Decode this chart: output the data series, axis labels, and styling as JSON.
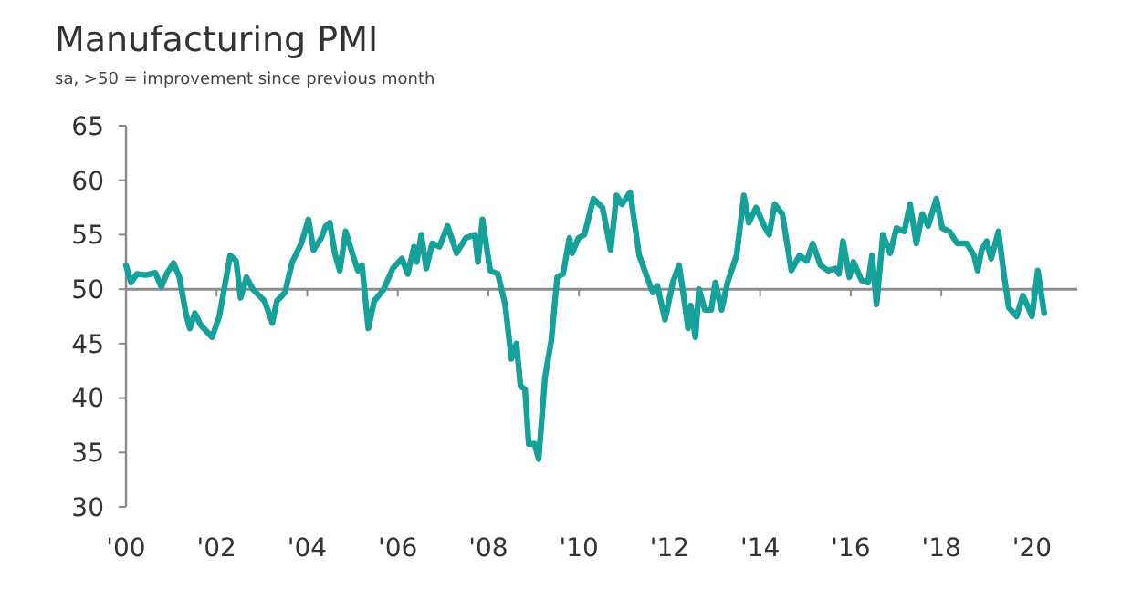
{
  "chart_data": {
    "type": "line",
    "title": "Manufacturing PMI",
    "subtitle": "sa, >50 = improvement since previous month",
    "x": [
      2000.0,
      2000.11,
      2000.24,
      2000.44,
      2000.65,
      2000.78,
      2000.91,
      2001.05,
      2001.18,
      2001.32,
      2001.41,
      2001.52,
      2001.65,
      2001.9,
      2002.06,
      2002.3,
      2002.43,
      2002.53,
      2002.66,
      2002.8,
      2003.06,
      2003.23,
      2003.33,
      2003.51,
      2003.67,
      2003.87,
      2004.03,
      2004.14,
      2004.31,
      2004.41,
      2004.5,
      2004.61,
      2004.72,
      2004.85,
      2005.01,
      2005.12,
      2005.21,
      2005.35,
      2005.48,
      2005.69,
      2005.89,
      2006.09,
      2006.22,
      2006.36,
      2006.42,
      2006.52,
      2006.63,
      2006.76,
      2006.92,
      2007.1,
      2007.3,
      2007.5,
      2007.7,
      2007.77,
      2007.87,
      2008.04,
      2008.21,
      2008.37,
      2008.51,
      2008.62,
      2008.71,
      2008.81,
      2008.89,
      2009.02,
      2009.11,
      2009.25,
      2009.39,
      2009.52,
      2009.65,
      2009.79,
      2009.85,
      2009.99,
      2010.12,
      2010.32,
      2010.52,
      2010.7,
      2010.83,
      2010.95,
      2011.13,
      2011.33,
      2011.53,
      2011.63,
      2011.73,
      2011.9,
      2012.07,
      2012.21,
      2012.3,
      2012.41,
      2012.47,
      2012.57,
      2012.65,
      2012.78,
      2012.92,
      2013.01,
      2013.15,
      2013.28,
      2013.48,
      2013.64,
      2013.75,
      2013.91,
      2014.09,
      2014.2,
      2014.32,
      2014.49,
      2014.69,
      2014.87,
      2015.03,
      2015.16,
      2015.33,
      2015.5,
      2015.66,
      2015.74,
      2015.83,
      2015.97,
      2016.06,
      2016.24,
      2016.38,
      2016.47,
      2016.57,
      2016.71,
      2016.87,
      2017.01,
      2017.18,
      2017.31,
      2017.45,
      2017.58,
      2017.71,
      2017.89,
      2018.02,
      2018.18,
      2018.35,
      2018.56,
      2018.72,
      2018.8,
      2018.89,
      2019.0,
      2019.1,
      2019.26,
      2019.4,
      2019.49,
      2019.66,
      2019.8,
      2019.89,
      2020.0,
      2020.13,
      2020.27
    ],
    "series": [
      {
        "color": "#15a09a",
        "values": [
          52.2,
          50.6,
          51.4,
          51.3,
          51.5,
          50.2,
          51.5,
          52.4,
          51.1,
          47.8,
          46.4,
          47.8,
          46.7,
          45.6,
          47.5,
          53.1,
          52.6,
          49.2,
          51.1,
          50,
          48.9,
          46.9,
          48.9,
          49.7,
          52.5,
          54.2,
          56.4,
          53.6,
          54.7,
          55.8,
          56.1,
          53.3,
          51.7,
          55.3,
          53.1,
          51.7,
          52.2,
          46.4,
          48.9,
          50,
          51.9,
          52.8,
          51.4,
          53.9,
          52.5,
          55,
          51.9,
          54.2,
          53.9,
          55.8,
          53.3,
          54.7,
          55,
          52.5,
          56.4,
          51.7,
          51.4,
          48.6,
          43.6,
          45,
          41.1,
          40.8,
          35.8,
          35.8,
          34.4,
          41.9,
          45.3,
          51.1,
          51.4,
          54.7,
          53.3,
          54.7,
          55,
          58.3,
          57.5,
          53.6,
          58.6,
          57.8,
          58.9,
          53.1,
          50.8,
          49.7,
          50.3,
          47.2,
          50.6,
          52.2,
          49.7,
          46.4,
          48.5,
          45.6,
          50,
          48.1,
          48.1,
          50.6,
          48.1,
          50.6,
          53.1,
          58.6,
          56.1,
          57.5,
          55.8,
          55,
          57.8,
          56.9,
          51.7,
          53.1,
          52.6,
          54.2,
          52.2,
          51.7,
          51.9,
          51.4,
          54.4,
          51.1,
          52.5,
          50.8,
          50.6,
          53.1,
          48.6,
          55,
          53.3,
          55.6,
          55.3,
          57.8,
          54.2,
          56.9,
          55.8,
          58.3,
          55.6,
          55.3,
          54.2,
          54.2,
          53.1,
          51.7,
          53.6,
          54.4,
          52.8,
          55.3,
          50.8,
          48.3,
          47.5,
          49.4,
          48.6,
          47.5,
          51.7,
          47.8
        ]
      }
    ],
    "xlim": [
      2000,
      2021
    ],
    "xticks": [
      {
        "value": 2000,
        "label": "'00"
      },
      {
        "value": 2002,
        "label": "'02"
      },
      {
        "value": 2004,
        "label": "'04"
      },
      {
        "value": 2006,
        "label": "'06"
      },
      {
        "value": 2008,
        "label": "'08"
      },
      {
        "value": 2010,
        "label": "'10"
      },
      {
        "value": 2012,
        "label": "'12"
      },
      {
        "value": 2014,
        "label": "'14"
      },
      {
        "value": 2016,
        "label": "'16"
      },
      {
        "value": 2018,
        "label": "'18"
      },
      {
        "value": 2020,
        "label": "'20"
      }
    ],
    "ylim": [
      30,
      65
    ],
    "yticks": [
      30,
      35,
      40,
      45,
      50,
      55,
      60,
      65
    ],
    "ref_lines": [
      {
        "axis": "y",
        "value": 50,
        "color": "#8c8c8c"
      }
    ],
    "grid": false,
    "marker": "none",
    "line_style": "solid"
  }
}
